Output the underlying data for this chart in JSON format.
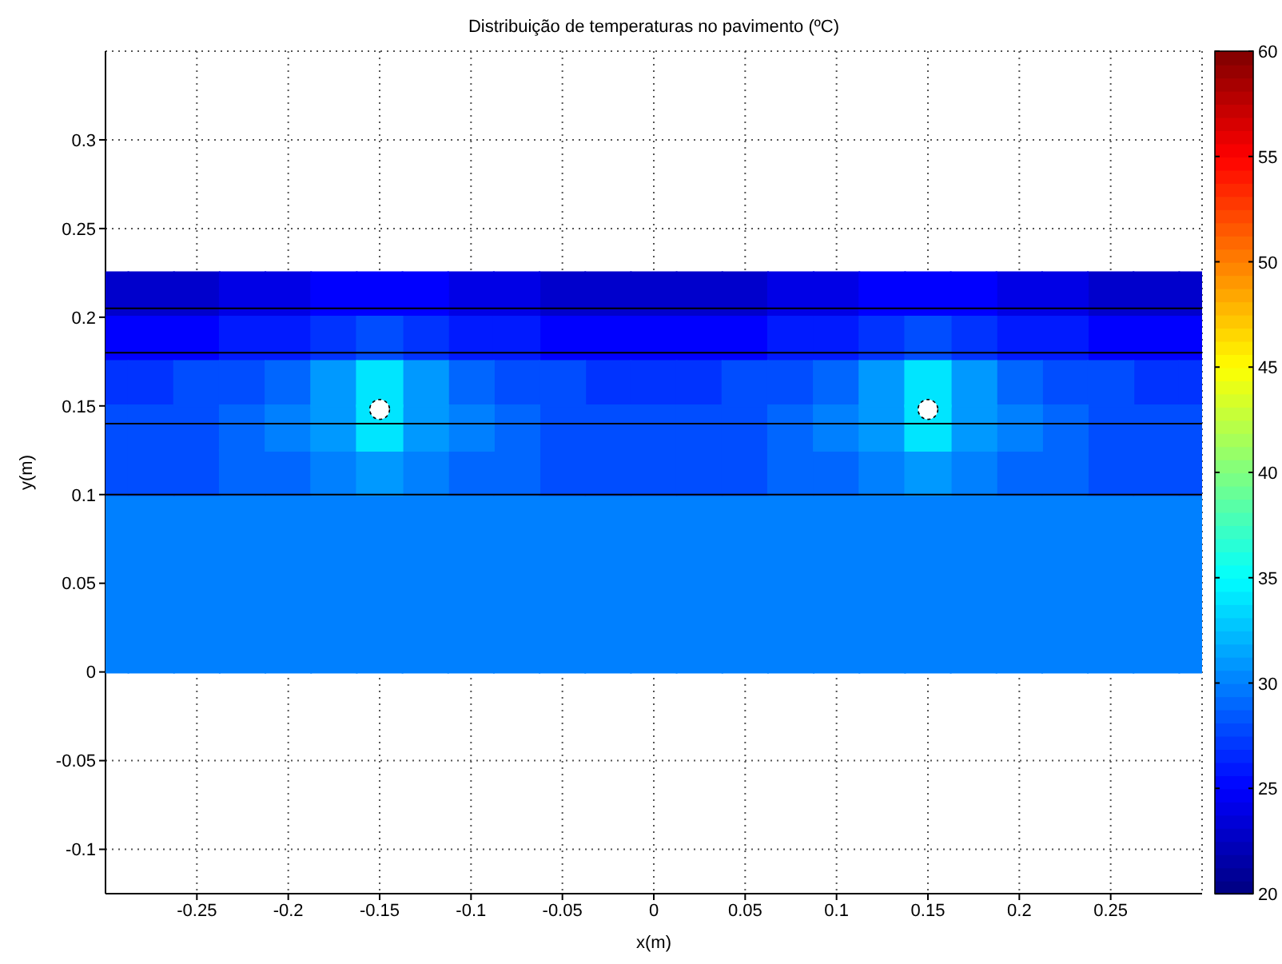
{
  "chart_data": {
    "type": "scatter",
    "title": "Distribuição de temperaturas no pavimento (ºC)",
    "xlabel": "x(m)",
    "ylabel": "y(m)",
    "xlim": [
      -0.3,
      0.3
    ],
    "xticks": [
      -0.25,
      -0.2,
      -0.15,
      -0.1,
      -0.05,
      0,
      0.05,
      0.1,
      0.15,
      0.2,
      0.25
    ],
    "ylim": [
      -0.125,
      0.35
    ],
    "yticks": [
      -0.1,
      -0.05,
      0,
      0.05,
      0.1,
      0.15,
      0.2,
      0.25,
      0.3
    ],
    "grid": true,
    "marker": "square",
    "clim": [
      20,
      60
    ],
    "cticks": [
      20,
      25,
      30,
      35,
      40,
      45,
      50,
      55,
      60
    ],
    "ref_lines": [
      {
        "axis": "y",
        "value": 0.1,
        "color": "#000000"
      },
      {
        "axis": "y",
        "value": 0.14,
        "color": "#000000"
      },
      {
        "axis": "y",
        "value": 0.18,
        "color": "#000000"
      },
      {
        "axis": "y",
        "value": 0.205,
        "color": "#000000"
      }
    ],
    "x": [
      -0.3,
      -0.275,
      -0.25,
      -0.225,
      -0.2,
      -0.175,
      -0.15,
      -0.125,
      -0.1,
      -0.075,
      -0.05,
      -0.025,
      0,
      0.025,
      0.05,
      0.075,
      0.1,
      0.125,
      0.15,
      0.175,
      0.2,
      0.225,
      0.25,
      0.275,
      0.3
    ],
    "series": [
      {
        "values": [
          0.0125,
          0.0125,
          0.0125,
          0.0125,
          0.0125,
          0.0125,
          0.0125,
          0.0125,
          0.0125,
          0.0125,
          0.0125,
          0.0125,
          0.0125,
          0.0125,
          0.0125,
          0.0125,
          0.0125,
          0.0125,
          0.0125,
          0.0125,
          0.0125,
          0.0125,
          0.0125,
          0.0125,
          0.0125
        ],
        "cvalues": [
          30,
          30,
          30,
          30,
          30,
          30,
          30,
          30,
          30,
          30,
          30,
          30,
          30,
          30,
          30,
          30,
          30,
          30,
          30,
          30,
          30,
          30,
          30,
          30,
          30
        ]
      },
      {
        "values": [
          0.0375,
          0.0375,
          0.0375,
          0.0375,
          0.0375,
          0.0375,
          0.0375,
          0.0375,
          0.0375,
          0.0375,
          0.0375,
          0.0375,
          0.0375,
          0.0375,
          0.0375,
          0.0375,
          0.0375,
          0.0375,
          0.0375,
          0.0375,
          0.0375,
          0.0375,
          0.0375,
          0.0375,
          0.0375
        ],
        "cvalues": [
          30,
          30,
          30,
          30,
          30,
          30,
          30,
          30,
          30,
          30,
          30,
          30,
          30,
          30,
          30,
          30,
          30,
          30,
          30,
          30,
          30,
          30,
          30,
          30,
          30
        ]
      },
      {
        "values": [
          0.0625,
          0.0625,
          0.0625,
          0.0625,
          0.0625,
          0.0625,
          0.0625,
          0.0625,
          0.0625,
          0.0625,
          0.0625,
          0.0625,
          0.0625,
          0.0625,
          0.0625,
          0.0625,
          0.0625,
          0.0625,
          0.0625,
          0.0625,
          0.0625,
          0.0625,
          0.0625,
          0.0625,
          0.0625
        ],
        "cvalues": [
          30,
          30,
          30,
          30,
          30,
          30,
          30,
          30,
          30,
          30,
          30,
          30,
          30,
          30,
          30,
          30,
          30,
          30,
          30,
          30,
          30,
          30,
          30,
          30,
          30
        ]
      },
      {
        "values": [
          0.0875,
          0.0875,
          0.0875,
          0.0875,
          0.0875,
          0.0875,
          0.0875,
          0.0875,
          0.0875,
          0.0875,
          0.0875,
          0.0875,
          0.0875,
          0.0875,
          0.0875,
          0.0875,
          0.0875,
          0.0875,
          0.0875,
          0.0875,
          0.0875,
          0.0875,
          0.0875,
          0.0875,
          0.0875
        ],
        "cvalues": [
          30,
          30,
          30,
          30,
          30,
          30,
          30,
          30,
          30,
          30,
          30,
          30,
          30,
          30,
          30,
          30,
          30,
          30,
          30,
          30,
          30,
          30,
          30,
          30,
          30
        ]
      },
      {
        "x": [
          -0.3,
          -0.275,
          -0.25,
          -0.05,
          -0.025,
          0,
          0.025,
          0.05,
          0.25,
          0.275,
          0.3
        ],
        "values": [
          0.2125,
          0.2125,
          0.2125,
          0.2125,
          0.2125,
          0.2125,
          0.2125,
          0.2125,
          0.2125,
          0.2125,
          0.2125
        ],
        "cvalues": [
          23,
          23,
          23,
          23,
          23,
          23,
          23,
          23,
          23,
          23,
          23
        ]
      },
      {
        "x": [
          -0.225,
          -0.2,
          -0.1,
          -0.075,
          0.075,
          0.1,
          0.2,
          0.225
        ],
        "values": [
          0.2125,
          0.2125,
          0.2125,
          0.2125,
          0.2125,
          0.2125,
          0.2125,
          0.2125
        ],
        "cvalues": [
          24,
          24,
          24,
          24,
          24,
          24,
          24,
          24
        ]
      },
      {
        "x": [
          -0.3,
          -0.275,
          -0.25,
          -0.05,
          -0.025,
          0,
          0.025,
          0.05,
          0.25,
          0.275,
          0.3,
          -0.175,
          -0.15,
          -0.125,
          0.125,
          0.15,
          0.175
        ],
        "values": [
          0.1875,
          0.1875,
          0.1875,
          0.1875,
          0.1875,
          0.1875,
          0.1875,
          0.1875,
          0.1875,
          0.1875,
          0.1875,
          0.2125,
          0.2125,
          0.2125,
          0.2125,
          0.2125,
          0.2125
        ],
        "cvalues": [
          25,
          25,
          25,
          25,
          25,
          25,
          25,
          25,
          25,
          25,
          25,
          25,
          25,
          25,
          25,
          25,
          25
        ]
      },
      {
        "x": [
          -0.225,
          -0.2,
          -0.1,
          -0.075,
          0.075,
          0.1,
          0.2,
          0.225
        ],
        "values": [
          0.1875,
          0.1875,
          0.1875,
          0.1875,
          0.1875,
          0.1875,
          0.1875,
          0.1875
        ],
        "cvalues": [
          26,
          26,
          26,
          26,
          26,
          26,
          26,
          26
        ]
      },
      {
        "x": [
          -0.3,
          -0.275,
          -0.025,
          0,
          0.025,
          0.275,
          0.3,
          -0.175,
          -0.125,
          0.125,
          0.175
        ],
        "values": [
          0.1625,
          0.1625,
          0.1625,
          0.1625,
          0.1625,
          0.1625,
          0.1625,
          0.1875,
          0.1875,
          0.1875,
          0.1875
        ],
        "cvalues": [
          27,
          27,
          27,
          27,
          27,
          27,
          27,
          27,
          27,
          27,
          27
        ]
      },
      {
        "x": [
          -0.3,
          -0.275,
          -0.25,
          -0.05,
          -0.025,
          0,
          0.025,
          0.05,
          0.25,
          0.275,
          0.3,
          -0.3,
          -0.275,
          -0.25,
          -0.05,
          -0.025,
          0,
          0.025,
          0.05,
          0.25,
          0.275,
          0.3,
          -0.25,
          -0.225,
          -0.075,
          -0.05,
          0.05,
          0.075,
          0.225,
          0.25,
          -0.15,
          0.15
        ],
        "values": [
          0.1125,
          0.1125,
          0.1125,
          0.1125,
          0.1125,
          0.1125,
          0.1125,
          0.1125,
          0.1125,
          0.1125,
          0.1125,
          0.1375,
          0.1375,
          0.1375,
          0.1375,
          0.1375,
          0.1375,
          0.1375,
          0.1375,
          0.1375,
          0.1375,
          0.1375,
          0.1625,
          0.1625,
          0.1625,
          0.1625,
          0.1625,
          0.1625,
          0.1625,
          0.1625,
          0.1875,
          0.1875
        ],
        "cvalues": [
          28,
          28,
          28,
          28,
          28,
          28,
          28,
          28,
          28,
          28,
          28,
          28,
          28,
          28,
          28,
          28,
          28,
          28,
          28,
          28,
          28,
          28,
          28,
          28,
          28,
          28,
          28,
          28,
          28,
          28,
          28,
          28
        ]
      },
      {
        "x": [
          -0.225,
          -0.2,
          -0.1,
          -0.075,
          0.075,
          0.1,
          0.2,
          0.225,
          -0.225,
          -0.075,
          0.075,
          0.225,
          -0.2,
          -0.1,
          0.1,
          0.2
        ],
        "values": [
          0.1125,
          0.1125,
          0.1125,
          0.1125,
          0.1125,
          0.1125,
          0.1125,
          0.1125,
          0.1375,
          0.1375,
          0.1375,
          0.1375,
          0.1625,
          0.1625,
          0.1625,
          0.1625
        ],
        "cvalues": [
          29,
          29,
          29,
          29,
          29,
          29,
          29,
          29,
          29,
          29,
          29,
          29,
          29,
          29,
          29,
          29
        ]
      },
      {
        "x": [
          -0.175,
          -0.125,
          0.125,
          0.175,
          -0.2,
          -0.1,
          0.1,
          0.2
        ],
        "values": [
          0.1125,
          0.1125,
          0.1125,
          0.1125,
          0.1375,
          0.1375,
          0.1375,
          0.1375
        ],
        "cvalues": [
          30,
          30,
          30,
          30,
          30,
          30,
          30,
          30
        ]
      },
      {
        "x": [
          -0.15,
          0.15,
          -0.175,
          -0.125,
          0.125,
          0.175,
          -0.175,
          -0.125,
          0.125,
          0.175
        ],
        "values": [
          0.1125,
          0.1125,
          0.1375,
          0.1375,
          0.1375,
          0.1375,
          0.1625,
          0.1625,
          0.1625,
          0.1625
        ],
        "cvalues": [
          31,
          31,
          31,
          31,
          31,
          31,
          31,
          31,
          31,
          31
        ]
      },
      {
        "x": [
          -0.15,
          0.15,
          -0.15,
          0.15
        ],
        "values": [
          0.1375,
          0.1375,
          0.1625,
          0.1625
        ],
        "cvalues": [
          34,
          34,
          34,
          34
        ]
      },
      {
        "marker": "circle",
        "color": "#ffffff",
        "x": [
          -0.15,
          0.15
        ],
        "values": [
          0.148,
          0.148
        ]
      }
    ]
  }
}
